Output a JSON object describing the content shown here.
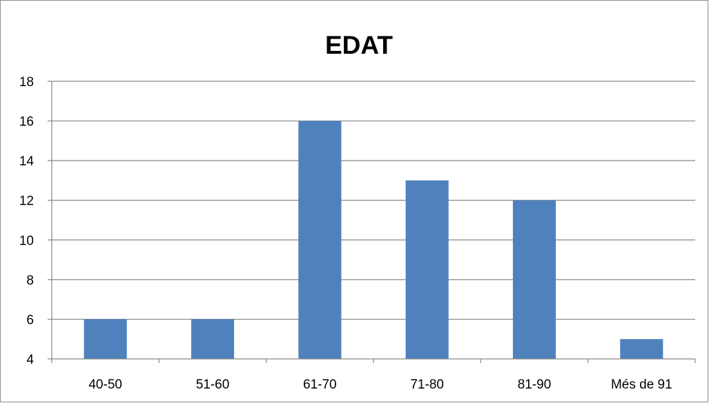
{
  "chart_data": {
    "type": "bar",
    "title": "EDAT",
    "xlabel": "",
    "ylabel": "",
    "categories": [
      "40-50",
      "51-60",
      "61-70",
      "71-80",
      "81-90",
      "Més de 91"
    ],
    "values": [
      6,
      6,
      16,
      13,
      12,
      5
    ],
    "ylim": [
      4,
      18
    ],
    "yticks": [
      4,
      6,
      8,
      10,
      12,
      14,
      16,
      18
    ],
    "grid": true,
    "legend": "none",
    "colors": {
      "bar": "#4f81bd",
      "grid": "#868686",
      "axis": "#868686"
    }
  }
}
